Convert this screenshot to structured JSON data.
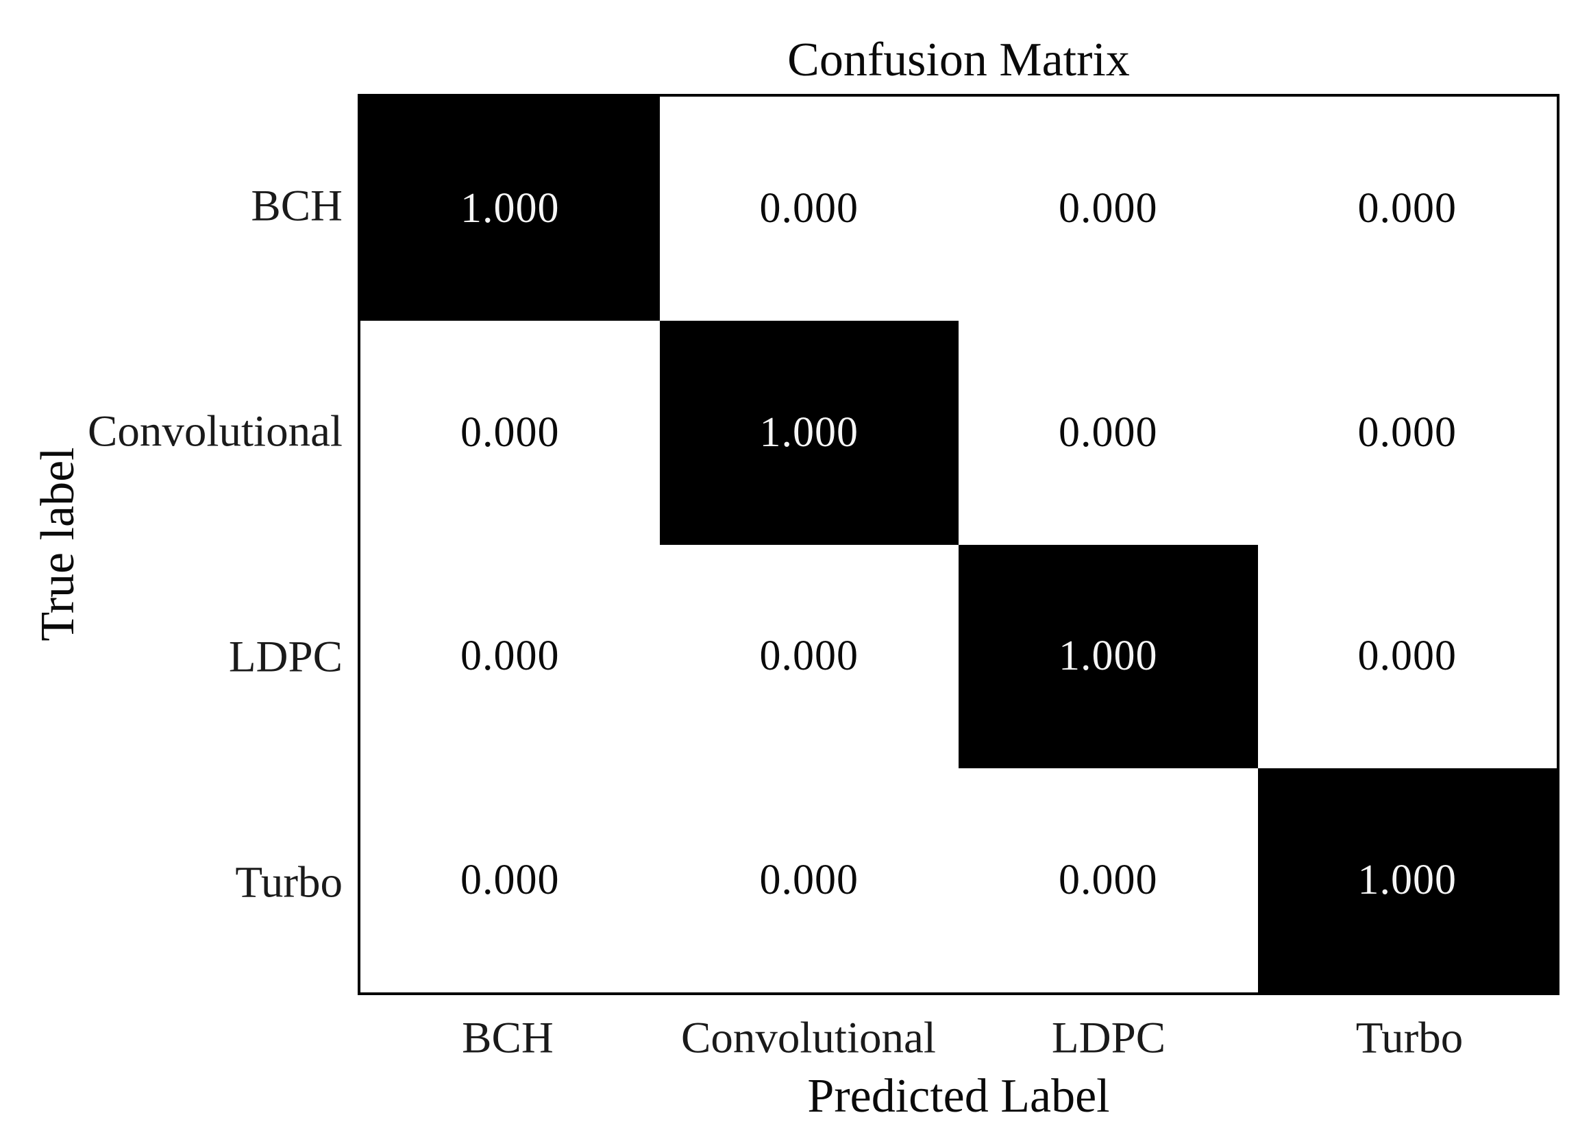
{
  "chart_data": {
    "type": "heatmap",
    "title": "Confusion Matrix",
    "xlabel": "Predicted Label",
    "ylabel": "True label",
    "x_tick_labels": [
      "BCH",
      "Convolutional",
      "LDPC",
      "Turbo"
    ],
    "y_tick_labels": [
      "BCH",
      "Convolutional",
      "LDPC",
      "Turbo"
    ],
    "matrix": [
      [
        1.0,
        0.0,
        0.0,
        0.0
      ],
      [
        0.0,
        1.0,
        0.0,
        0.0
      ],
      [
        0.0,
        0.0,
        1.0,
        0.0
      ],
      [
        0.0,
        0.0,
        0.0,
        1.0
      ]
    ],
    "cell_labels": [
      [
        "1.000",
        "0.000",
        "0.000",
        "0.000"
      ],
      [
        "0.000",
        "1.000",
        "0.000",
        "0.000"
      ],
      [
        "0.000",
        "0.000",
        "1.000",
        "0.000"
      ],
      [
        "0.000",
        "0.000",
        "0.000",
        "1.000"
      ]
    ],
    "value_format": "3-decimal",
    "colors": {
      "cell_high": "#000000",
      "cell_low": "#ffffff",
      "text_on_high": "#f5f5f5",
      "text_on_low": "#0a0a0a",
      "spine": "#000000",
      "background": "#ffffff"
    },
    "layout": {
      "grid": false,
      "legend": false,
      "colorbar": false,
      "tick_marks": false,
      "diagonal_is_dark": true
    }
  }
}
